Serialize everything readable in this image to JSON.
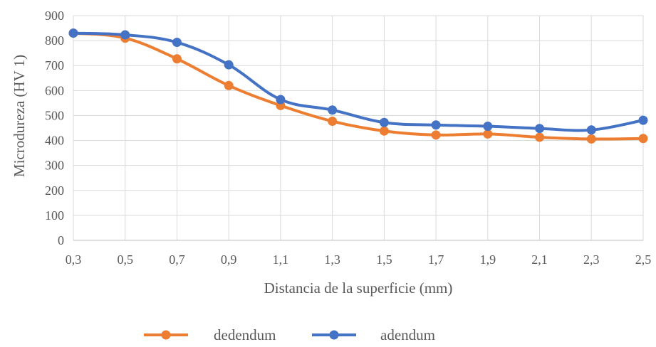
{
  "chart_data": {
    "type": "line",
    "title": "",
    "xlabel": "Distancia de la superficie (mm)",
    "ylabel": "Microdureza (HV 1)",
    "x": [
      "0,3",
      "0,5",
      "0,7",
      "0,9",
      "1,1",
      "1,3",
      "1,5",
      "1,7",
      "1,9",
      "2,1",
      "2,3",
      "2,5"
    ],
    "ylim": [
      0,
      900
    ],
    "yticks": [
      "0",
      "100",
      "200",
      "300",
      "400",
      "500",
      "600",
      "700",
      "800",
      "900"
    ],
    "grid": true,
    "legend_position": "bottom",
    "series": [
      {
        "name": "dedendum",
        "color": "#ed7d31",
        "values": [
          830,
          810,
          727,
          620,
          540,
          477,
          438,
          422,
          426,
          413,
          406,
          408
        ]
      },
      {
        "name": "adendum",
        "color": "#4472c4",
        "values": [
          830,
          823,
          793,
          703,
          564,
          522,
          472,
          462,
          457,
          448,
          442,
          481
        ]
      }
    ]
  }
}
